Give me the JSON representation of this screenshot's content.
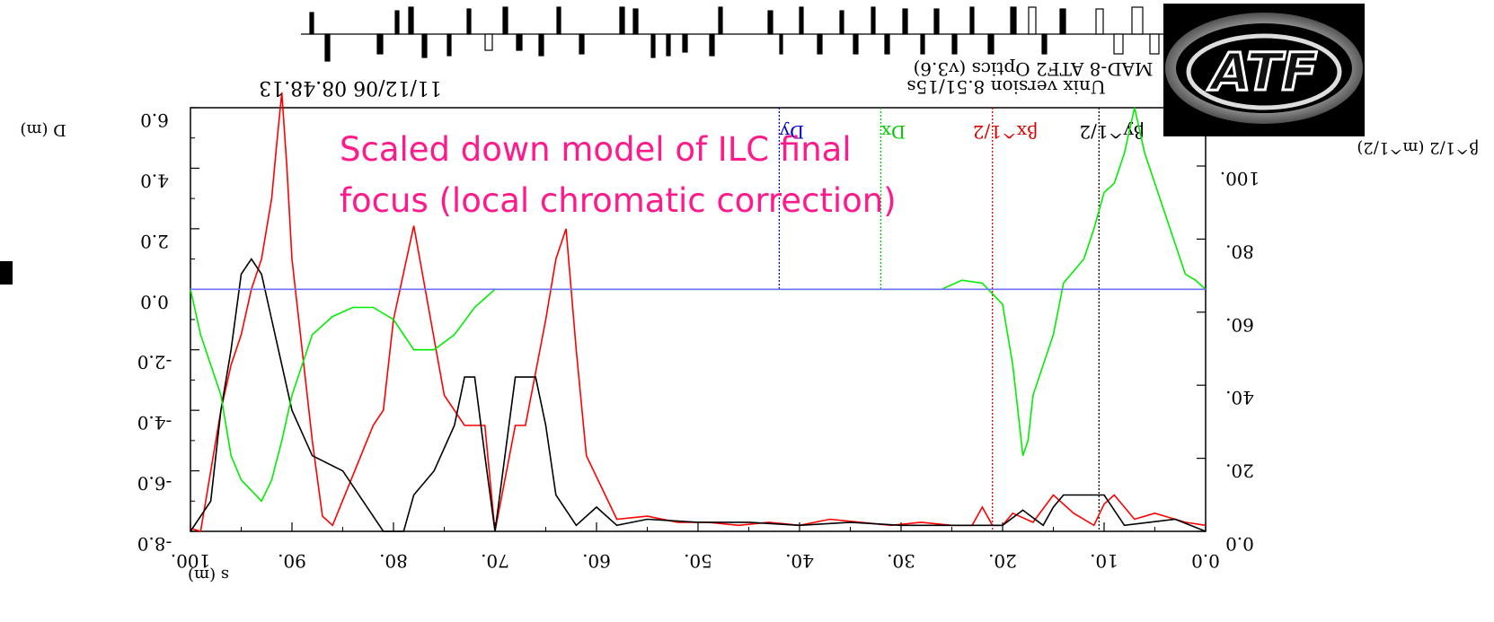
{
  "header": {
    "date_time": "11/12/06 08.48.13",
    "program_line": "MAD-8 ATF2 Optics (v3.6)",
    "version_line": "Unix version 8.51/15s",
    "y_left_label": "D (m)",
    "y_right_label": "β^1/2 (m^1/2)",
    "x_label": "s (m)"
  },
  "overlay": {
    "line1": "Scaled down model of ILC final",
    "line2": "focus (local chromatic correction)",
    "color": "#ff1a8c"
  },
  "logo": {
    "text": "ATF"
  },
  "chart_data": {
    "type": "line",
    "orientation_note": "figure is rotated 180 degrees",
    "x_ticks": [
      "0.0",
      "10.",
      "20.",
      "30.",
      "40.",
      "50.",
      "60.",
      "70.",
      "80.",
      "90.",
      "100."
    ],
    "y_left_ticks": [
      "-8.0",
      "-6.0",
      "-4.0",
      "-2.0",
      "0.0",
      "2.0",
      "4.0",
      "6.0"
    ],
    "y_right_ticks": [
      "0.0",
      "20.",
      "40.",
      "60.",
      "80.",
      "100."
    ],
    "xlim": [
      0,
      100
    ],
    "ylim_left": [
      -8,
      6
    ],
    "markers": [
      {
        "label": "Dy",
        "x": 42,
        "color": "#0000cc"
      },
      {
        "label": "Dx",
        "x": 32,
        "color": "#00cc00"
      },
      {
        "label": "βx^1/2",
        "x": 21,
        "color": "#dd0000"
      },
      {
        "label": "βy^1/2",
        "x": 10.5,
        "color": "#000000"
      }
    ],
    "series": [
      {
        "color": "#ff0000",
        "x": [
          0,
          2,
          5,
          7,
          9,
          10,
          11,
          13,
          15,
          17,
          19,
          20,
          21,
          22,
          23,
          25,
          28,
          31,
          34,
          37,
          40,
          43,
          46,
          49,
          52,
          55,
          58,
          61,
          62,
          63,
          64,
          65,
          67,
          68,
          70,
          71,
          73,
          75,
          78,
          80,
          81,
          82,
          86,
          87,
          88,
          89,
          90,
          90.5,
          91,
          91.5,
          92,
          93,
          94,
          95,
          96,
          97,
          98,
          99,
          100
        ],
        "y": [
          -7.8,
          -7.7,
          -7.4,
          -7.6,
          -6.8,
          -7.1,
          -7.8,
          -7.4,
          -6.8,
          -7.7,
          -7.4,
          -7.8,
          -7.8,
          -7.2,
          -7.8,
          -7.8,
          -7.7,
          -7.8,
          -7.7,
          -7.6,
          -7.8,
          -7.7,
          -7.8,
          -7.7,
          -7.7,
          -7.5,
          -7.6,
          -5.5,
          -2,
          2,
          1,
          -1,
          -4.5,
          -4.5,
          -8.0,
          -4.5,
          -4.5,
          -3.5,
          2.1,
          -1,
          -4,
          -4.5,
          -7.8,
          -7.5,
          -5,
          -2,
          1,
          4,
          6.5,
          4.8,
          3.0,
          1,
          0,
          -1.5,
          -2.5,
          -4,
          -6,
          -8,
          -7.9
        ]
      },
      {
        "color": "#000000",
        "x": [
          0,
          3,
          8,
          9,
          10,
          11,
          12,
          14,
          15,
          16,
          18,
          20,
          25,
          30,
          35,
          40,
          45,
          50,
          55,
          58,
          60,
          62,
          64,
          65,
          66,
          68,
          70,
          71,
          72,
          73,
          74,
          76,
          78,
          79,
          81,
          83,
          85,
          88,
          90,
          91,
          92,
          93,
          94,
          95,
          96,
          97,
          98,
          100
        ],
        "y": [
          -8,
          -7.6,
          -7.8,
          -7.3,
          -6.8,
          -6.8,
          -6.8,
          -6.8,
          -7.2,
          -7.8,
          -7.3,
          -7.8,
          -7.8,
          -7.8,
          -7.7,
          -7.8,
          -7.7,
          -7.7,
          -7.6,
          -7.8,
          -7.2,
          -7.8,
          -6.8,
          -4.5,
          -2.9,
          -2.9,
          -8.0,
          -5.5,
          -2.9,
          -2.9,
          -4.5,
          -6.0,
          -6.8,
          -8.0,
          -8.0,
          -7.0,
          -6.0,
          -5.5,
          -4.0,
          -2.5,
          -1.0,
          0.5,
          1.0,
          0.5,
          -2.0,
          -4.0,
          -7.0,
          -8.0
        ]
      },
      {
        "color": "#00ee00",
        "x": [
          0,
          1,
          1.5,
          2,
          3,
          4,
          5,
          6,
          7,
          8,
          9,
          10,
          11,
          12,
          14,
          15,
          16,
          17,
          17.5,
          18,
          18.5,
          19,
          20,
          22,
          24,
          26,
          30,
          35,
          40,
          50,
          60,
          62,
          64,
          68,
          70,
          71,
          72,
          74,
          76,
          78,
          80,
          82,
          84,
          86,
          88,
          90,
          91,
          92,
          93,
          95,
          96,
          97,
          98,
          99,
          100
        ],
        "y": [
          0,
          0.3,
          0.4,
          0.5,
          1.5,
          2.5,
          3.5,
          4.5,
          6.0,
          4.5,
          3.5,
          3.2,
          2.0,
          1.0,
          0.2,
          -1.5,
          -2.5,
          -3.5,
          -5.0,
          -5.5,
          -4.0,
          -2.5,
          -0.5,
          0.2,
          0.3,
          0.0,
          0,
          0,
          0,
          0,
          0,
          0,
          0,
          0,
          0,
          -0.3,
          -0.6,
          -1.5,
          -2.0,
          -2.0,
          -1.0,
          -0.6,
          -0.6,
          -0.9,
          -1.5,
          -3.5,
          -5.0,
          -6.3,
          -7.0,
          -6.3,
          -5.5,
          -3.5,
          -2.5,
          -1.5,
          0
        ]
      },
      {
        "color": "#7070ff",
        "x": [
          0,
          100
        ],
        "y": [
          0,
          0
        ]
      }
    ]
  }
}
